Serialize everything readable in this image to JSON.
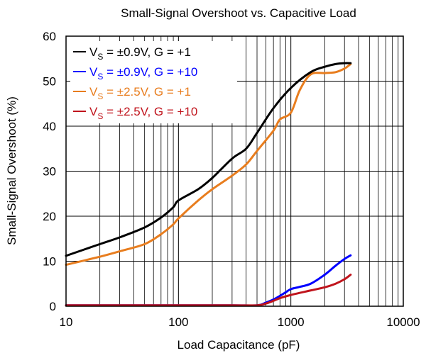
{
  "chart_data": {
    "type": "line",
    "title": "Small-Signal Overshoot vs. Capacitive Load",
    "xlabel": "Load Capacitance (pF)",
    "ylabel": "Small-Signal Overshoot (%)",
    "xscale": "log",
    "xlim": [
      10,
      10000
    ],
    "ylim": [
      0,
      60
    ],
    "xticks": [
      10,
      100,
      1000,
      10000
    ],
    "xtick_labels": [
      "10",
      "100",
      "1000",
      "10000"
    ],
    "yticks": [
      0,
      10,
      20,
      30,
      40,
      50,
      60
    ],
    "ytick_labels": [
      "0",
      "10",
      "20",
      "30",
      "40",
      "50",
      "60"
    ],
    "grid": true,
    "legend_position": "top-left",
    "series": [
      {
        "name": "VS = ±0.9V, G = +1",
        "legend_main": "V",
        "legend_sub": "S",
        "legend_rest": " = ±0.9V, G = +1",
        "color": "#000000",
        "x": [
          10,
          20,
          30,
          50,
          70,
          90,
          100,
          150,
          200,
          300,
          400,
          500,
          700,
          1000,
          1500,
          2000,
          2500,
          3000,
          3400
        ],
        "y": [
          11.2,
          13.8,
          15.3,
          17.5,
          19.7,
          22,
          23.5,
          26,
          28.5,
          32.8,
          35,
          38.5,
          44,
          48.5,
          52,
          53.2,
          53.8,
          54,
          54
        ]
      },
      {
        "name": "VS = ±0.9V, G = +10",
        "legend_main": "V",
        "legend_sub": "S",
        "legend_rest": " = ±0.9V, G = +10",
        "color": "#0000ff",
        "x": [
          10,
          100,
          300,
          500,
          600,
          700,
          800,
          900,
          1000,
          1200,
          1500,
          2000,
          2500,
          3000,
          3400
        ],
        "y": [
          0.2,
          0.2,
          0.2,
          0.2,
          0.8,
          1.5,
          2.3,
          3.1,
          3.8,
          4.3,
          5,
          7,
          9,
          10.5,
          11.3
        ]
      },
      {
        "name": "VS = ±2.5V, G = +1",
        "legend_main": "V",
        "legend_sub": "S",
        "legend_rest": " = ±2.5V, G = +1",
        "color": "#e87d1e",
        "x": [
          10,
          20,
          30,
          50,
          70,
          90,
          100,
          150,
          200,
          300,
          400,
          500,
          700,
          800,
          1000,
          1200,
          1500,
          2000,
          2500,
          3000,
          3400
        ],
        "y": [
          9.2,
          11,
          12.2,
          13.8,
          16,
          18.2,
          19.5,
          23.5,
          26,
          29,
          31.5,
          34.5,
          39,
          41.5,
          43,
          48,
          51.5,
          51.8,
          52,
          52.8,
          53.8
        ]
      },
      {
        "name": "VS = ±2.5V, G = +10",
        "legend_main": "V",
        "legend_sub": "S",
        "legend_rest": " = ±2.5V, G = +10",
        "color": "#c0141c",
        "x": [
          10,
          100,
          300,
          500,
          600,
          700,
          800,
          1000,
          1500,
          2000,
          2500,
          3000,
          3400
        ],
        "y": [
          0.2,
          0.2,
          0.2,
          0.2,
          0.6,
          1.2,
          1.8,
          2.5,
          3.5,
          4.2,
          5,
          6,
          7
        ]
      }
    ]
  }
}
